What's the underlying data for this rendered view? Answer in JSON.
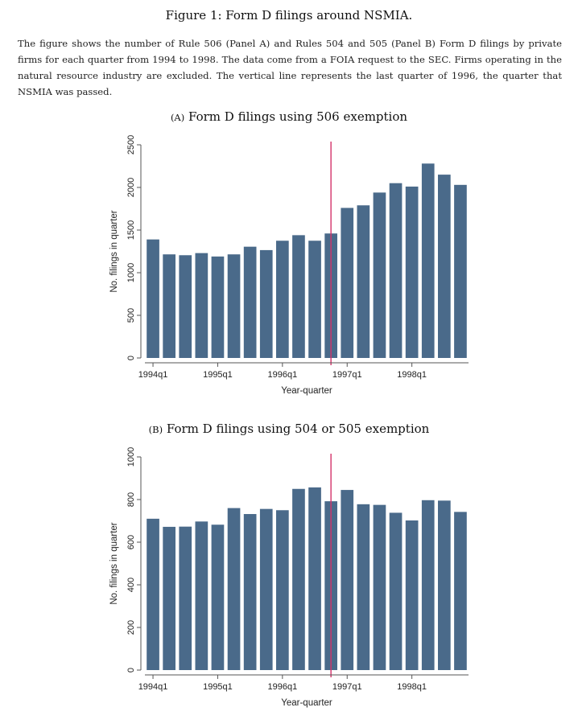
{
  "figure": {
    "title": "Figure 1: Form D filings around NSMIA.",
    "caption": "The figure shows the number of Rule 506 (Panel A) and Rules 504 and 505 (Panel B) Form D filings by private firms for each quarter from 1994 to 1998. The data come from a FOIA request to the SEC. Firms operating in the natural resource industry are excluded. The vertical line represents the last quarter of 1996, the quarter that NSMIA was passed."
  },
  "colors": {
    "bar": "#4a6a8a",
    "vline": "#d4336a",
    "axis": "#555555"
  },
  "chart_data": [
    {
      "type": "bar",
      "panel_label": "(A)",
      "title": "Form D filings using 506 exemption",
      "xlabel": "Year-quarter",
      "ylabel": "No. filings in quarter",
      "ylim": [
        0,
        2500
      ],
      "yticks": [
        0,
        500,
        1000,
        1500,
        2000,
        2500
      ],
      "xtick_labels": [
        "1994q1",
        "1995q1",
        "1996q1",
        "1997q1",
        "1998q1"
      ],
      "categories": [
        "1994q1",
        "1994q2",
        "1994q3",
        "1994q4",
        "1995q1",
        "1995q2",
        "1995q3",
        "1995q4",
        "1996q1",
        "1996q2",
        "1996q3",
        "1996q4",
        "1997q1",
        "1997q2",
        "1997q3",
        "1997q4",
        "1998q1",
        "1998q2",
        "1998q3",
        "1998q4"
      ],
      "values": [
        1390,
        1215,
        1205,
        1230,
        1190,
        1215,
        1305,
        1265,
        1375,
        1440,
        1375,
        1460,
        1760,
        1790,
        1940,
        2050,
        2010,
        2280,
        2150,
        2030
      ],
      "vline_quarter": "1996q4",
      "grid": false
    },
    {
      "type": "bar",
      "panel_label": "(B)",
      "title": "Form D filings using 504 or 505 exemption",
      "xlabel": "Year-quarter",
      "ylabel": "No. filings in quarter",
      "ylim": [
        0,
        1000
      ],
      "yticks": [
        0,
        200,
        400,
        600,
        800,
        1000
      ],
      "xtick_labels": [
        "1994q1",
        "1995q1",
        "1996q1",
        "1997q1",
        "1998q1"
      ],
      "categories": [
        "1994q1",
        "1994q2",
        "1994q3",
        "1994q4",
        "1995q1",
        "1995q2",
        "1995q3",
        "1995q4",
        "1996q1",
        "1996q2",
        "1996q3",
        "1996q4",
        "1997q1",
        "1997q2",
        "1997q3",
        "1997q4",
        "1998q1",
        "1998q2",
        "1998q3",
        "1998q4"
      ],
      "values": [
        710,
        672,
        673,
        697,
        682,
        760,
        732,
        756,
        750,
        850,
        857,
        792,
        845,
        778,
        775,
        738,
        702,
        797,
        795,
        742
      ],
      "vline_quarter": "1996q4",
      "grid": false
    }
  ]
}
